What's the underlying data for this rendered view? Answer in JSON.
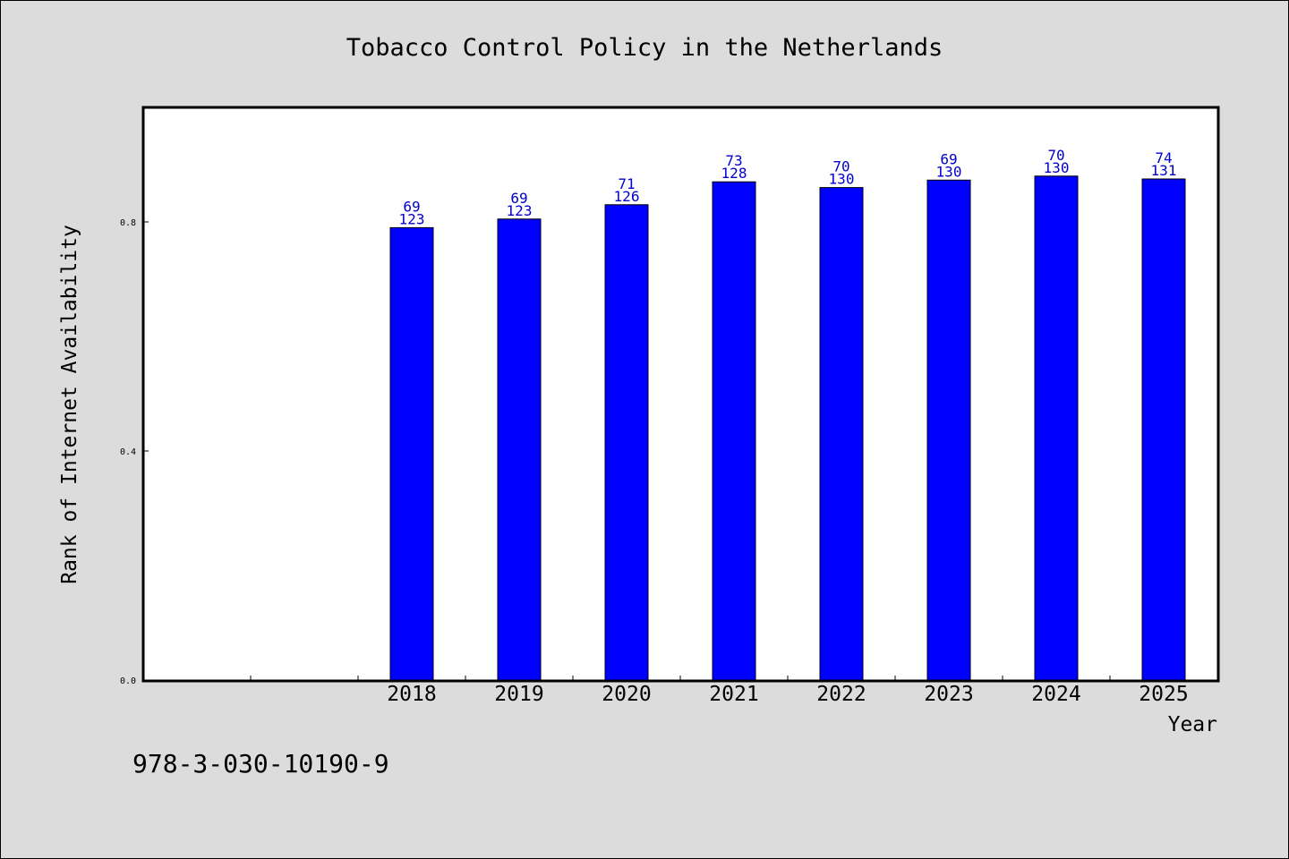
{
  "chart_data": {
    "type": "bar",
    "title": "Tobacco Control Policy in the Netherlands",
    "xlabel": "Year",
    "ylabel": "Rank of Internet Availability",
    "categories": [
      "2018",
      "2019",
      "2020",
      "2021",
      "2022",
      "2023",
      "2024",
      "2025"
    ],
    "values": [
      0.79,
      0.805,
      0.83,
      0.87,
      0.86,
      0.873,
      0.88,
      0.875
    ],
    "label_top": [
      "69",
      "69",
      "71",
      "73",
      "70",
      "69",
      "70",
      "74"
    ],
    "label_bottom": [
      "123",
      "123",
      "126",
      "128",
      "130",
      "130",
      "130",
      "131"
    ],
    "ylim": [
      0,
      1.0
    ],
    "yticks": [
      "0.0",
      "0.4",
      "0.8"
    ],
    "grid": false,
    "bar_color": "#0000ff",
    "label_color": "#0000cc"
  },
  "footer": {
    "isbn": "978-3-030-10190-9"
  }
}
